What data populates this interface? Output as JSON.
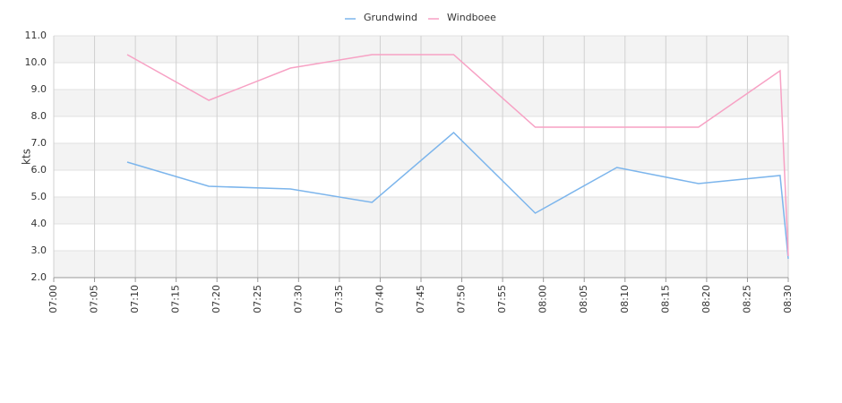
{
  "chart_data": {
    "type": "line",
    "y_label": "kts",
    "x": [
      "07:09",
      "07:19",
      "07:29",
      "07:39",
      "07:49",
      "07:59",
      "08:09",
      "08:19",
      "08:29",
      "08:30"
    ],
    "series": [
      {
        "name": "Grundwind",
        "color": "#7cb5ec",
        "values": [
          6.3,
          5.4,
          5.3,
          4.8,
          7.4,
          4.4,
          6.1,
          5.5,
          5.8,
          2.7
        ]
      },
      {
        "name": "Windboee",
        "color": "#f7a1c4",
        "values": [
          10.3,
          8.6,
          9.8,
          10.3,
          10.3,
          7.6,
          7.6,
          7.6,
          9.7,
          2.8
        ]
      }
    ],
    "xlim": [
      "07:00",
      "08:30"
    ],
    "xticks": [
      "07:00",
      "07:05",
      "07:10",
      "07:15",
      "07:20",
      "07:25",
      "07:30",
      "07:35",
      "07:40",
      "07:45",
      "07:50",
      "07:55",
      "08:00",
      "08:05",
      "08:10",
      "08:15",
      "08:20",
      "08:25",
      "08:30"
    ],
    "ylim": [
      2,
      11
    ],
    "yticks": [
      {
        "value": 2,
        "label": "2.0"
      },
      {
        "value": 3,
        "label": "3.0"
      },
      {
        "value": 4,
        "label": "4.0"
      },
      {
        "value": 5,
        "label": "5.0"
      },
      {
        "value": 6,
        "label": "6.0"
      },
      {
        "value": 7,
        "label": "7.0"
      },
      {
        "value": 8,
        "label": "8.0"
      },
      {
        "value": 9,
        "label": "9.0"
      },
      {
        "value": 10,
        "label": "10.0"
      },
      {
        "value": 11,
        "label": "11.0"
      }
    ],
    "grid": true,
    "legend": "top"
  }
}
